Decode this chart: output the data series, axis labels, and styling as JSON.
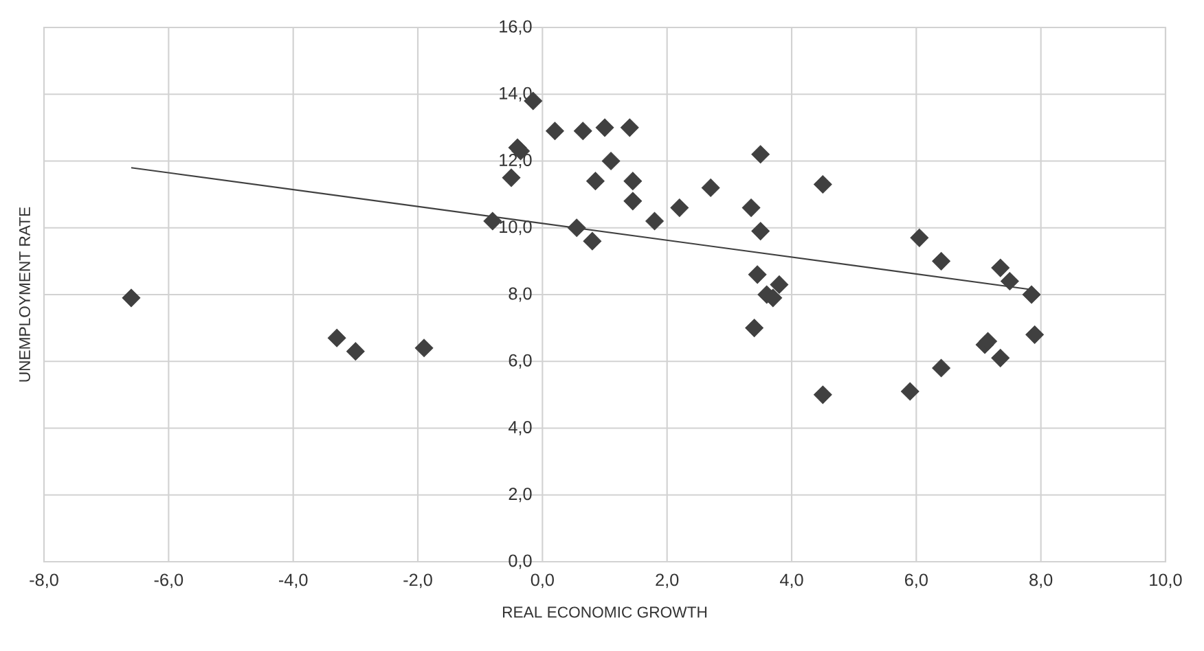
{
  "chart_data": {
    "type": "scatter",
    "xlabel": "REAL ECONOMIC GROWTH",
    "ylabel": "UNEMPLOYMENT RATE",
    "xlim": [
      -8,
      10
    ],
    "ylim": [
      0,
      16
    ],
    "xticks": [
      {
        "value": -8,
        "label": "-8,0"
      },
      {
        "value": -6,
        "label": "-6,0"
      },
      {
        "value": -4,
        "label": "-4,0"
      },
      {
        "value": -2,
        "label": "-2,0"
      },
      {
        "value": 0,
        "label": "0,0"
      },
      {
        "value": 2,
        "label": "2,0"
      },
      {
        "value": 4,
        "label": "4,0"
      },
      {
        "value": 6,
        "label": "6,0"
      },
      {
        "value": 8,
        "label": "8,0"
      },
      {
        "value": 10,
        "label": "10,0"
      }
    ],
    "yticks": [
      {
        "value": 0,
        "label": "0,0"
      },
      {
        "value": 2,
        "label": "2,0"
      },
      {
        "value": 4,
        "label": "4,0"
      },
      {
        "value": 6,
        "label": "6,0"
      },
      {
        "value": 8,
        "label": "8,0"
      },
      {
        "value": 10,
        "label": "10,0"
      },
      {
        "value": 12,
        "label": "12,0"
      },
      {
        "value": 14,
        "label": "14,0"
      },
      {
        "value": 16,
        "label": "16,0"
      }
    ],
    "grid": true,
    "series": [
      {
        "marker": "diamond",
        "color": "#404040",
        "x": [
          -6.6,
          -3.3,
          -3.0,
          -1.9,
          -0.8,
          -0.5,
          -0.4,
          -0.35,
          -0.15,
          0.2,
          0.65,
          1.0,
          1.4,
          0.85,
          1.1,
          1.45,
          1.45,
          0.55,
          0.8,
          1.8,
          2.2,
          2.7,
          3.35,
          3.5,
          3.5,
          3.45,
          3.6,
          3.7,
          3.8,
          3.4,
          4.5,
          4.5,
          5.9,
          6.05,
          6.4,
          6.4,
          7.1,
          7.15,
          7.35,
          7.35,
          7.5,
          7.85,
          7.9
        ],
        "values": [
          7.9,
          6.7,
          6.3,
          6.4,
          10.2,
          11.5,
          12.4,
          12.3,
          13.8,
          12.9,
          12.9,
          13.0,
          13.0,
          11.4,
          12.0,
          11.4,
          10.8,
          10.0,
          9.6,
          10.2,
          10.6,
          11.2,
          10.6,
          12.2,
          9.9,
          8.6,
          8.0,
          7.9,
          8.3,
          7.0,
          11.3,
          5.0,
          5.1,
          9.7,
          9.0,
          5.8,
          6.5,
          6.6,
          8.8,
          6.1,
          8.4,
          8.0,
          6.8
        ]
      },
      {
        "type": "line",
        "color": "#404040",
        "x": [
          -6.6,
          7.85
        ],
        "values": [
          11.8,
          8.15
        ]
      }
    ]
  }
}
